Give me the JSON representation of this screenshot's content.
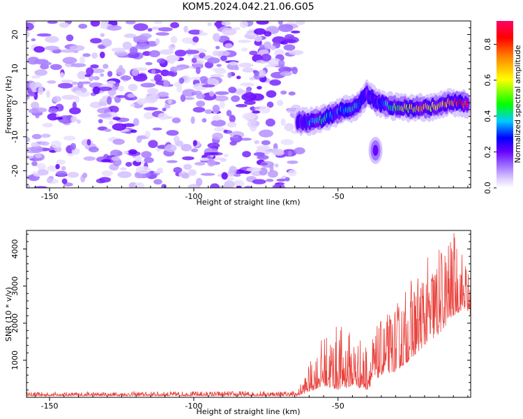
{
  "page_title": "KOM5.2024.042.21.06.G05",
  "chart_data": [
    {
      "type": "heatmap",
      "title": "KOM5.2024.042.21.06.G05",
      "xlabel": "Height of straight line (km)",
      "ylabel": "Frequency (Hz)",
      "xlim": [
        -158,
        -4
      ],
      "ylim": [
        -25,
        24
      ],
      "x_ticks": [
        -150,
        -100,
        -50
      ],
      "y_ticks": [
        -20,
        -10,
        0,
        10,
        20
      ],
      "colorbar": {
        "label": "Normalized spectral amplitude",
        "range": [
          0,
          0.93
        ],
        "ticks": [
          0.0,
          0.2,
          0.4,
          0.6,
          0.8
        ],
        "colors": [
          "#ffffff",
          "#d9c7ff",
          "#9966ff",
          "#6600ff",
          "#0000ff",
          "#00ccff",
          "#00ff00",
          "#ffff00",
          "#ff8800",
          "#ff0000",
          "#ff0066"
        ]
      },
      "noise_region": {
        "x": [
          -158,
          -63
        ],
        "y": [
          -25,
          24
        ],
        "typical_amplitude": [
          0.03,
          0.2
        ]
      },
      "signal_ridge": [
        {
          "x": -64,
          "y": -5.5,
          "a": 0.2
        },
        {
          "x": -60,
          "y": -5.5,
          "a": 0.35
        },
        {
          "x": -56,
          "y": -5.0,
          "a": 0.45
        },
        {
          "x": -52,
          "y": -3.5,
          "a": 0.3
        },
        {
          "x": -48,
          "y": -2.0,
          "a": 0.35
        },
        {
          "x": -44,
          "y": -1.5,
          "a": 0.4
        },
        {
          "x": -40,
          "y": 2.5,
          "a": 0.15
        },
        {
          "x": -36,
          "y": 0.0,
          "a": 0.3
        },
        {
          "x": -32,
          "y": -1.0,
          "a": 0.4
        },
        {
          "x": -28,
          "y": -1.5,
          "a": 0.55
        },
        {
          "x": -24,
          "y": -1.5,
          "a": 0.6
        },
        {
          "x": -20,
          "y": -1.5,
          "a": 0.7
        },
        {
          "x": -16,
          "y": -1.0,
          "a": 0.6
        },
        {
          "x": -12,
          "y": 0.0,
          "a": 0.75
        },
        {
          "x": -8,
          "y": 0.0,
          "a": 0.85
        },
        {
          "x": -5,
          "y": -0.5,
          "a": 0.9
        }
      ],
      "side_feature": {
        "x": -37,
        "y": -14,
        "a": 0.2
      }
    },
    {
      "type": "line",
      "xlabel": "Height of straight line (km)",
      "ylabel": "SNR (10 * v/v)",
      "xlim": [
        -158,
        -4
      ],
      "ylim": [
        0,
        4500
      ],
      "x_ticks": [
        -150,
        -100,
        -50
      ],
      "y_ticks": [
        1000,
        2000,
        3000,
        4000
      ],
      "color": "#e8403a",
      "envelope": [
        {
          "x": -158,
          "base": 40,
          "peak": 140
        },
        {
          "x": -64,
          "base": 40,
          "peak": 180
        },
        {
          "x": -60,
          "base": 150,
          "peak": 900
        },
        {
          "x": -55,
          "base": 300,
          "peak": 1700
        },
        {
          "x": -50,
          "base": 200,
          "peak": 2000
        },
        {
          "x": -45,
          "base": 300,
          "peak": 1800
        },
        {
          "x": -40,
          "base": 200,
          "peak": 1500
        },
        {
          "x": -35,
          "base": 600,
          "peak": 2100
        },
        {
          "x": -30,
          "base": 700,
          "peak": 2500
        },
        {
          "x": -25,
          "base": 1000,
          "peak": 3200
        },
        {
          "x": -20,
          "base": 1400,
          "peak": 3700
        },
        {
          "x": -15,
          "base": 1700,
          "peak": 4100
        },
        {
          "x": -10,
          "base": 2200,
          "peak": 4500
        },
        {
          "x": -6,
          "base": 2400,
          "peak": 3900
        },
        {
          "x": -4,
          "base": 2200,
          "peak": 3100
        }
      ]
    }
  ]
}
